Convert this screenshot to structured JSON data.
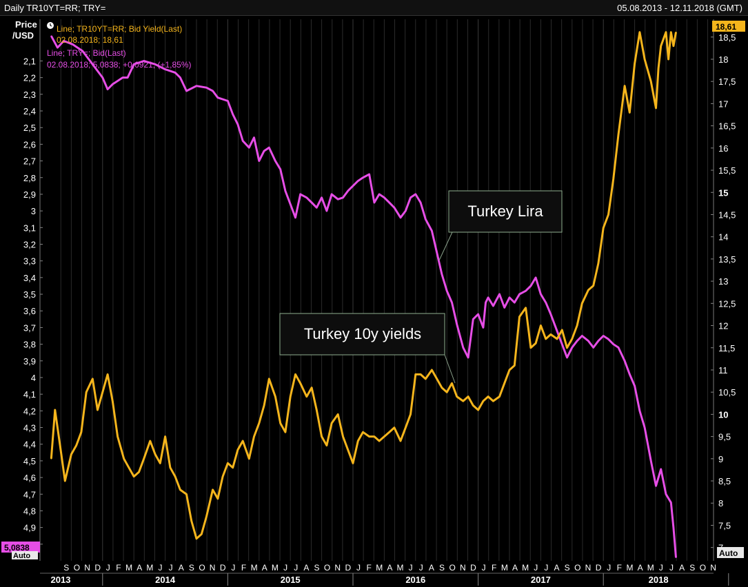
{
  "window": {
    "title": "Daily TR10YT=RR; TRY=",
    "date_range": "05.08.2013 - 12.11.2018 (GMT)"
  },
  "left_axis": {
    "unit_line1": "Price",
    "unit_line2": "/USD",
    "current_label": "5,0838",
    "auto_label": "Auto"
  },
  "right_axis": {
    "current_label": "18,61",
    "auto_label": "Auto"
  },
  "legend": {
    "yield_line": "Line; TR10YT=RR; Bid Yield(Last)",
    "yield_value": "02.08.2018; 18,61",
    "try_line": "Line; TRY=; Bid(Last)",
    "try_value": "02.08.2018; 5,0838; +0,0921; (+1,85%)"
  },
  "annotations": {
    "lira": "Turkey Lira",
    "yields": "Turkey 10y yields"
  },
  "colors": {
    "background": "#000000",
    "grid": "#2b2b2b",
    "yield": "#f5b51c",
    "lira": "#e64ee6",
    "legend_yield_text": "#f5b51c",
    "legend_lira_text": "#e64ee6",
    "legend_change_text": "#5de0e0"
  },
  "chart_data": {
    "type": "line",
    "x_axis": {
      "months": [
        "S",
        "O",
        "N",
        "D",
        "J",
        "F",
        "M",
        "A",
        "M",
        "J",
        "J",
        "A",
        "S",
        "O",
        "N",
        "D",
        "J",
        "F",
        "M",
        "A",
        "M",
        "J",
        "J",
        "A",
        "S",
        "O",
        "N",
        "D",
        "J",
        "F",
        "M",
        "A",
        "M",
        "J",
        "J",
        "A",
        "S",
        "O",
        "N",
        "D",
        "J",
        "F",
        "M",
        "A",
        "M",
        "J",
        "J",
        "A",
        "S",
        "O",
        "N",
        "D",
        "J",
        "F",
        "M",
        "A",
        "M",
        "J",
        "J",
        "A",
        "S",
        "O",
        "N"
      ],
      "years": [
        "2013",
        "2014",
        "2015",
        "2016",
        "2017",
        "2018"
      ],
      "range": [
        "2013-08-05",
        "2018-11-12"
      ]
    },
    "left_axis": {
      "inverted": true,
      "range": [
        1.85,
        5.1
      ],
      "ticks": [
        "2,1",
        "2,2",
        "2,3",
        "2,4",
        "2,5",
        "2,6",
        "2,7",
        "2,8",
        "2,9",
        "3",
        "3,1",
        "3,2",
        "3,3",
        "3,4",
        "3,5",
        "3,6",
        "3,7",
        "3,8",
        "3,9",
        "4",
        "4,1",
        "4,2",
        "4,3",
        "4,4",
        "4,5",
        "4,6",
        "4,7",
        "4,8",
        "4,9",
        "5"
      ],
      "tick_values": [
        2.1,
        2.2,
        2.3,
        2.4,
        2.5,
        2.6,
        2.7,
        2.8,
        2.9,
        3.0,
        3.1,
        3.2,
        3.3,
        3.4,
        3.5,
        3.6,
        3.7,
        3.8,
        3.9,
        4.0,
        4.1,
        4.2,
        4.3,
        4.4,
        4.5,
        4.6,
        4.7,
        4.8,
        4.9,
        5.0
      ]
    },
    "right_axis": {
      "range": [
        6.7,
        18.9
      ],
      "ticks": [
        "7",
        "7,5",
        "8",
        "8,5",
        "9",
        "9,5",
        "10",
        "10,5",
        "11",
        "11,5",
        "12",
        "12,5",
        "13",
        "13,5",
        "14",
        "14,5",
        "15",
        "15,5",
        "16",
        "16,5",
        "17",
        "17,5",
        "18",
        "18,5"
      ],
      "tick_values": [
        7,
        7.5,
        8,
        8.5,
        9,
        9.5,
        10,
        10.5,
        11,
        11.5,
        12,
        12.5,
        13,
        13.5,
        14,
        14.5,
        15,
        15.5,
        16,
        16.5,
        17,
        17.5,
        18,
        18.5
      ]
    },
    "series": [
      {
        "name": "TRY=; Bid(Last)",
        "axis": "left",
        "x": [
          2013.59,
          2013.64,
          2013.69,
          2013.76,
          2013.84,
          2013.92,
          2014.0,
          2014.04,
          2014.08,
          2014.12,
          2014.16,
          2014.2,
          2014.25,
          2014.33,
          2014.42,
          2014.5,
          2014.58,
          2014.62,
          2014.67,
          2014.75,
          2014.83,
          2014.88,
          2014.92,
          2015.0,
          2015.04,
          2015.08,
          2015.12,
          2015.17,
          2015.21,
          2015.25,
          2015.29,
          2015.33,
          2015.38,
          2015.42,
          2015.46,
          2015.5,
          2015.54,
          2015.58,
          2015.63,
          2015.67,
          2015.71,
          2015.75,
          2015.79,
          2015.83,
          2015.88,
          2015.92,
          2015.96,
          2016.0,
          2016.04,
          2016.08,
          2016.13,
          2016.17,
          2016.21,
          2016.25,
          2016.29,
          2016.33,
          2016.38,
          2016.42,
          2016.46,
          2016.5,
          2016.54,
          2016.58,
          2016.63,
          2016.67,
          2016.71,
          2016.75,
          2016.79,
          2016.83,
          2016.88,
          2016.92,
          2016.96,
          2017.0,
          2017.04,
          2017.06,
          2017.08,
          2017.12,
          2017.17,
          2017.21,
          2017.25,
          2017.29,
          2017.33,
          2017.38,
          2017.42,
          2017.46,
          2017.5,
          2017.54,
          2017.58,
          2017.63,
          2017.67,
          2017.71,
          2017.75,
          2017.79,
          2017.83,
          2017.88,
          2017.92,
          2017.96,
          2018.0,
          2018.04,
          2018.08,
          2018.12,
          2018.17,
          2018.21,
          2018.25,
          2018.29,
          2018.33,
          2018.38,
          2018.42,
          2018.46,
          2018.5,
          2018.54,
          2018.56,
          2018.58
        ],
        "y": [
          1.95,
          2.02,
          1.98,
          2.0,
          2.04,
          2.12,
          2.2,
          2.27,
          2.24,
          2.22,
          2.2,
          2.2,
          2.12,
          2.1,
          2.12,
          2.15,
          2.17,
          2.2,
          2.28,
          2.25,
          2.26,
          2.28,
          2.32,
          2.34,
          2.42,
          2.48,
          2.58,
          2.62,
          2.56,
          2.7,
          2.64,
          2.62,
          2.7,
          2.75,
          2.88,
          2.96,
          3.04,
          2.9,
          2.92,
          2.95,
          2.98,
          2.92,
          3.0,
          2.9,
          2.93,
          2.92,
          2.88,
          2.85,
          2.82,
          2.8,
          2.78,
          2.95,
          2.9,
          2.92,
          2.95,
          2.98,
          3.04,
          3.0,
          2.92,
          2.9,
          2.95,
          3.05,
          3.12,
          3.25,
          3.38,
          3.48,
          3.55,
          3.68,
          3.82,
          3.88,
          3.65,
          3.62,
          3.7,
          3.55,
          3.52,
          3.57,
          3.5,
          3.58,
          3.52,
          3.55,
          3.5,
          3.48,
          3.45,
          3.4,
          3.5,
          3.55,
          3.62,
          3.72,
          3.8,
          3.88,
          3.82,
          3.78,
          3.75,
          3.78,
          3.82,
          3.78,
          3.75,
          3.77,
          3.8,
          3.82,
          3.9,
          3.98,
          4.05,
          4.2,
          4.3,
          4.5,
          4.65,
          4.55,
          4.7,
          4.75,
          4.9,
          5.08
        ]
      },
      {
        "name": "TR10YT=RR; Bid Yield(Last)",
        "axis": "right",
        "x": [
          2013.59,
          2013.62,
          2013.66,
          2013.7,
          2013.75,
          2013.79,
          2013.83,
          2013.87,
          2013.92,
          2013.96,
          2014.0,
          2014.04,
          2014.08,
          2014.12,
          2014.17,
          2014.21,
          2014.25,
          2014.29,
          2014.33,
          2014.38,
          2014.42,
          2014.46,
          2014.5,
          2014.54,
          2014.58,
          2014.62,
          2014.67,
          2014.71,
          2014.75,
          2014.79,
          2014.83,
          2014.88,
          2014.92,
          2014.96,
          2015.0,
          2015.04,
          2015.08,
          2015.12,
          2015.17,
          2015.21,
          2015.25,
          2015.29,
          2015.33,
          2015.38,
          2015.42,
          2015.46,
          2015.5,
          2015.54,
          2015.58,
          2015.63,
          2015.67,
          2015.71,
          2015.75,
          2015.79,
          2015.83,
          2015.88,
          2015.92,
          2015.96,
          2016.0,
          2016.04,
          2016.08,
          2016.13,
          2016.17,
          2016.21,
          2016.25,
          2016.29,
          2016.33,
          2016.38,
          2016.42,
          2016.46,
          2016.5,
          2016.54,
          2016.58,
          2016.63,
          2016.67,
          2016.71,
          2016.75,
          2016.79,
          2016.83,
          2016.88,
          2016.92,
          2016.96,
          2017.0,
          2017.04,
          2017.08,
          2017.12,
          2017.17,
          2017.21,
          2017.25,
          2017.29,
          2017.33,
          2017.38,
          2017.42,
          2017.46,
          2017.5,
          2017.54,
          2017.58,
          2017.63,
          2017.67,
          2017.71,
          2017.75,
          2017.79,
          2017.83,
          2017.88,
          2017.92,
          2017.96,
          2018.0,
          2018.04,
          2018.08,
          2018.12,
          2018.17,
          2018.21,
          2018.25,
          2018.29,
          2018.33,
          2018.38,
          2018.42,
          2018.44,
          2018.46,
          2018.5,
          2018.52,
          2018.54,
          2018.56,
          2018.58
        ],
        "y": [
          9.0,
          10.1,
          9.3,
          8.5,
          9.1,
          9.3,
          9.6,
          10.5,
          10.8,
          10.1,
          10.5,
          10.9,
          10.3,
          9.5,
          9.0,
          8.8,
          8.6,
          8.7,
          9.0,
          9.4,
          9.1,
          8.9,
          9.5,
          8.8,
          8.6,
          8.3,
          8.2,
          7.6,
          7.2,
          7.3,
          7.7,
          8.3,
          8.1,
          8.6,
          8.9,
          8.8,
          9.2,
          9.4,
          9.0,
          9.5,
          9.8,
          10.2,
          10.8,
          10.4,
          9.8,
          9.6,
          10.4,
          10.9,
          10.7,
          10.4,
          10.6,
          10.1,
          9.5,
          9.3,
          9.8,
          10.0,
          9.5,
          9.2,
          8.9,
          9.4,
          9.6,
          9.5,
          9.5,
          9.4,
          9.5,
          9.6,
          9.7,
          9.4,
          9.7,
          10.0,
          10.9,
          10.9,
          10.8,
          11.0,
          10.8,
          10.6,
          10.5,
          10.7,
          10.4,
          10.3,
          10.4,
          10.2,
          10.1,
          10.3,
          10.4,
          10.3,
          10.4,
          10.7,
          11.0,
          11.1,
          12.2,
          12.4,
          11.5,
          11.6,
          12.0,
          11.7,
          11.8,
          11.7,
          11.9,
          11.5,
          11.7,
          12.0,
          12.5,
          12.8,
          12.9,
          13.4,
          14.2,
          14.5,
          15.3,
          16.3,
          17.4,
          16.8,
          17.9,
          18.61,
          18.0,
          17.5,
          16.9,
          17.8,
          18.3,
          18.61,
          18.0,
          18.61,
          18.3,
          18.61
        ]
      }
    ],
    "last_values": {
      "TRY": 5.0838,
      "TR10YT": 18.61
    }
  }
}
